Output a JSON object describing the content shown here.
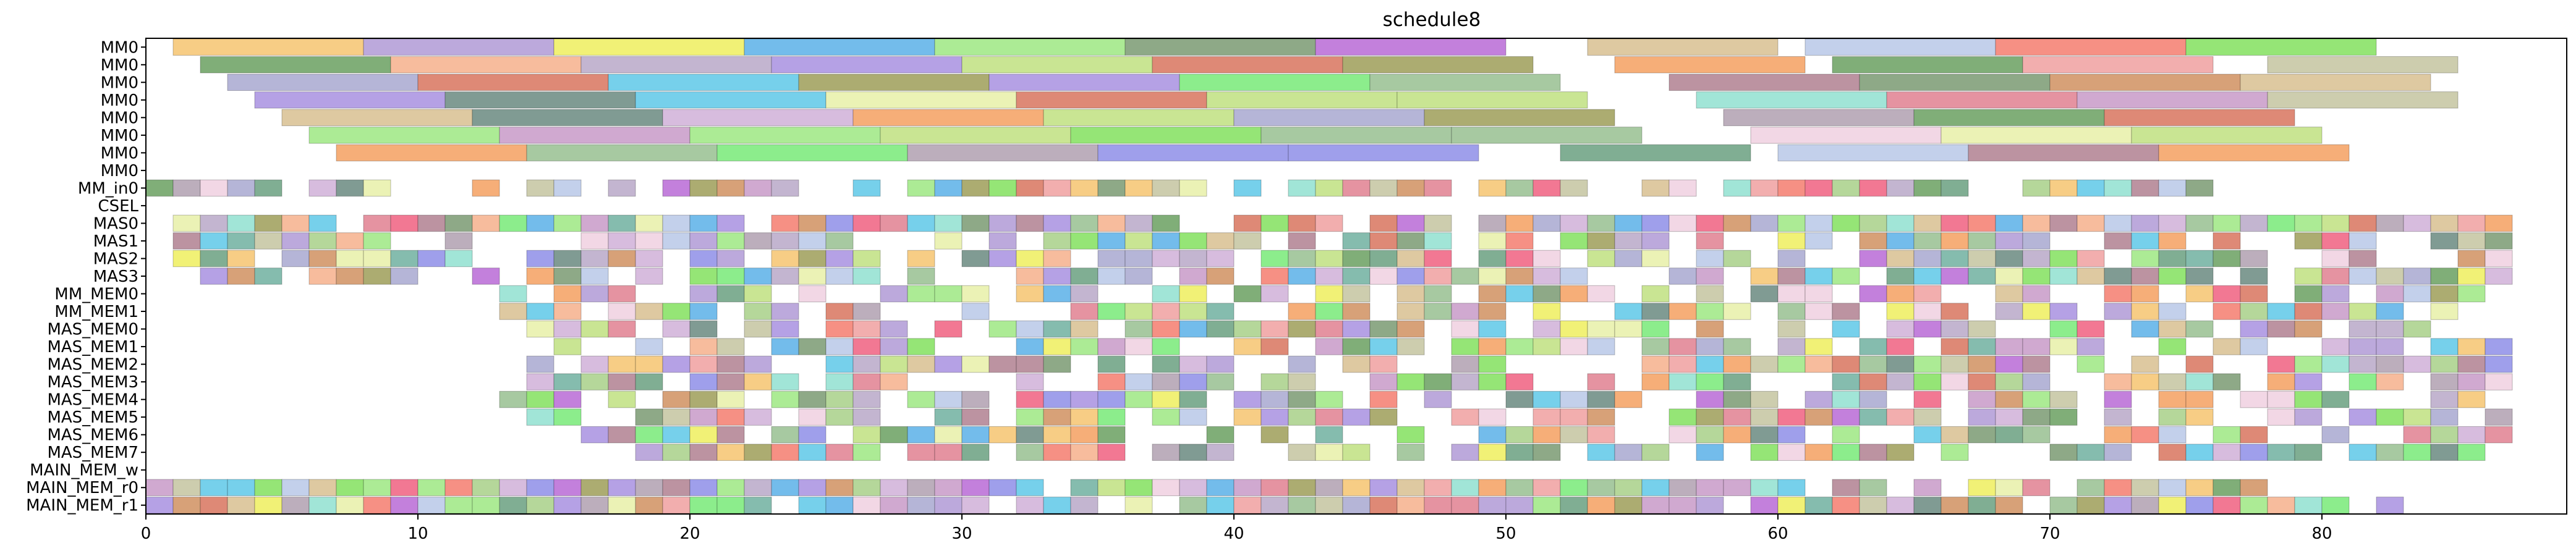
{
  "chart_data": {
    "type": "gantt",
    "title": "schedule8",
    "xlabel": "",
    "ylabel": "",
    "xlim": [
      0,
      89
    ],
    "grid": false,
    "xticks": [
      0,
      10,
      20,
      30,
      40,
      50,
      60,
      70,
      80
    ],
    "xtick_labels": [
      "0",
      "10",
      "20",
      "30",
      "40",
      "50",
      "60",
      "70",
      "80"
    ],
    "rows": [
      "MM0",
      "MM0",
      "MM0",
      "MM0",
      "MM0",
      "MM0",
      "MM0",
      "MM0",
      "MM_in0",
      "CSEL",
      "MAS0",
      "MAS1",
      "MAS2",
      "MAS3",
      "MM_MEM0",
      "MM_MEM1",
      "MAS_MEM0",
      "MAS_MEM1",
      "MAS_MEM2",
      "MAS_MEM3",
      "MAS_MEM4",
      "MAS_MEM5",
      "MAS_MEM6",
      "MAS_MEM7",
      "MAIN_MEM_w",
      "MAIN_MEM_r0",
      "MAIN_MEM_r1"
    ],
    "palette": [
      "#f6c470",
      "#b09ad6",
      "#eeee5e",
      "#5ab0e8",
      "#9ee882",
      "#7a9a72",
      "#b86ad6",
      "#d8c090",
      "#e8f0a8",
      "#f47c6e",
      "#82e05e",
      "#c4c4a0",
      "#6aa060",
      "#f6b08c",
      "#a890e0",
      "#9e9e58",
      "#d8745e",
      "#b8a8c8",
      "#f4a060",
      "#b08090",
      "#e08090",
      "#5ec8e8",
      "#c0e080",
      "#6a8a80",
      "#78ea78",
      "#98c090",
      "#f0d0e0",
      "#90e0d0",
      "#70b0a0",
      "#8e8ee8",
      "#c89ac8",
      "#d0b0d8",
      "#f06080",
      "#6aa080",
      "#a8d088",
      "#a8a8d0",
      "#b8c8e8",
      "#f0a0a0",
      "#d09060",
      "#b0a0b0"
    ],
    "bars": [
      [
        [
          1,
          8,
          0
        ],
        [
          8,
          15,
          1
        ],
        [
          15,
          22,
          2
        ],
        [
          22,
          29,
          3
        ],
        [
          29,
          36,
          4
        ],
        [
          36,
          43,
          5
        ],
        [
          43,
          50,
          6
        ],
        [
          53,
          60,
          7
        ],
        [
          61,
          68,
          36
        ],
        [
          68,
          75,
          9
        ],
        [
          75,
          82,
          10
        ]
      ],
      [
        [
          2,
          9,
          12
        ],
        [
          9,
          16,
          13
        ],
        [
          16,
          23,
          17
        ],
        [
          23,
          30,
          14
        ],
        [
          30,
          37,
          22
        ],
        [
          37,
          44,
          16
        ],
        [
          44,
          51,
          15
        ],
        [
          54,
          61,
          18
        ],
        [
          62,
          69,
          12
        ],
        [
          69,
          76,
          37
        ],
        [
          78,
          85,
          11
        ]
      ],
      [
        [
          3,
          10,
          35
        ],
        [
          10,
          17,
          16
        ],
        [
          17,
          24,
          21
        ],
        [
          24,
          31,
          15
        ],
        [
          31,
          38,
          14
        ],
        [
          38,
          45,
          24
        ],
        [
          45,
          52,
          25
        ],
        [
          56,
          63,
          19
        ],
        [
          63,
          70,
          5
        ],
        [
          70,
          77,
          38
        ],
        [
          77,
          84,
          7
        ]
      ],
      [
        [
          4,
          11,
          14
        ],
        [
          11,
          18,
          23
        ],
        [
          18,
          25,
          21
        ],
        [
          25,
          32,
          8
        ],
        [
          32,
          39,
          16
        ],
        [
          39,
          46,
          22
        ],
        [
          46,
          53,
          22
        ],
        [
          57,
          64,
          27
        ],
        [
          64,
          71,
          20
        ],
        [
          71,
          78,
          30
        ],
        [
          78,
          85,
          11
        ]
      ],
      [
        [
          5,
          12,
          7
        ],
        [
          12,
          19,
          23
        ],
        [
          19,
          26,
          31
        ],
        [
          26,
          33,
          18
        ],
        [
          33,
          40,
          22
        ],
        [
          40,
          47,
          35
        ],
        [
          47,
          54,
          15
        ],
        [
          58,
          65,
          39
        ],
        [
          65,
          72,
          12
        ],
        [
          72,
          79,
          16
        ]
      ],
      [
        [
          6,
          13,
          4
        ],
        [
          13,
          20,
          30
        ],
        [
          20,
          27,
          4
        ],
        [
          27,
          34,
          22
        ],
        [
          34,
          41,
          10
        ],
        [
          41,
          48,
          25
        ],
        [
          48,
          55,
          25
        ],
        [
          59,
          66,
          26
        ],
        [
          66,
          73,
          8
        ],
        [
          73,
          80,
          22
        ]
      ],
      [
        [
          7,
          14,
          18
        ],
        [
          14,
          21,
          25
        ],
        [
          21,
          28,
          24
        ],
        [
          28,
          35,
          39
        ],
        [
          35,
          42,
          29
        ],
        [
          42,
          49,
          29
        ],
        [
          52,
          59,
          33
        ],
        [
          60,
          67,
          36
        ],
        [
          67,
          74,
          19
        ],
        [
          74,
          81,
          18
        ]
      ]
    ],
    "row_bar_counts": {
      "MM_in0": 58,
      "MAS0": 78,
      "MAS1": 72,
      "MAS2": 70,
      "MAS3": 62,
      "MM_MEM0": 66,
      "MM_MEM1": 64,
      "MAS_MEM0": 60,
      "MAS_MEM1": 64,
      "MAS_MEM2": 62,
      "MAS_MEM3": 60,
      "MAS_MEM4": 64,
      "MAS_MEM5": 60,
      "MAS_MEM6": 58,
      "MAS_MEM7": 66,
      "MAIN_MEM_r0": 78,
      "MAIN_MEM_r1": 86
    }
  }
}
